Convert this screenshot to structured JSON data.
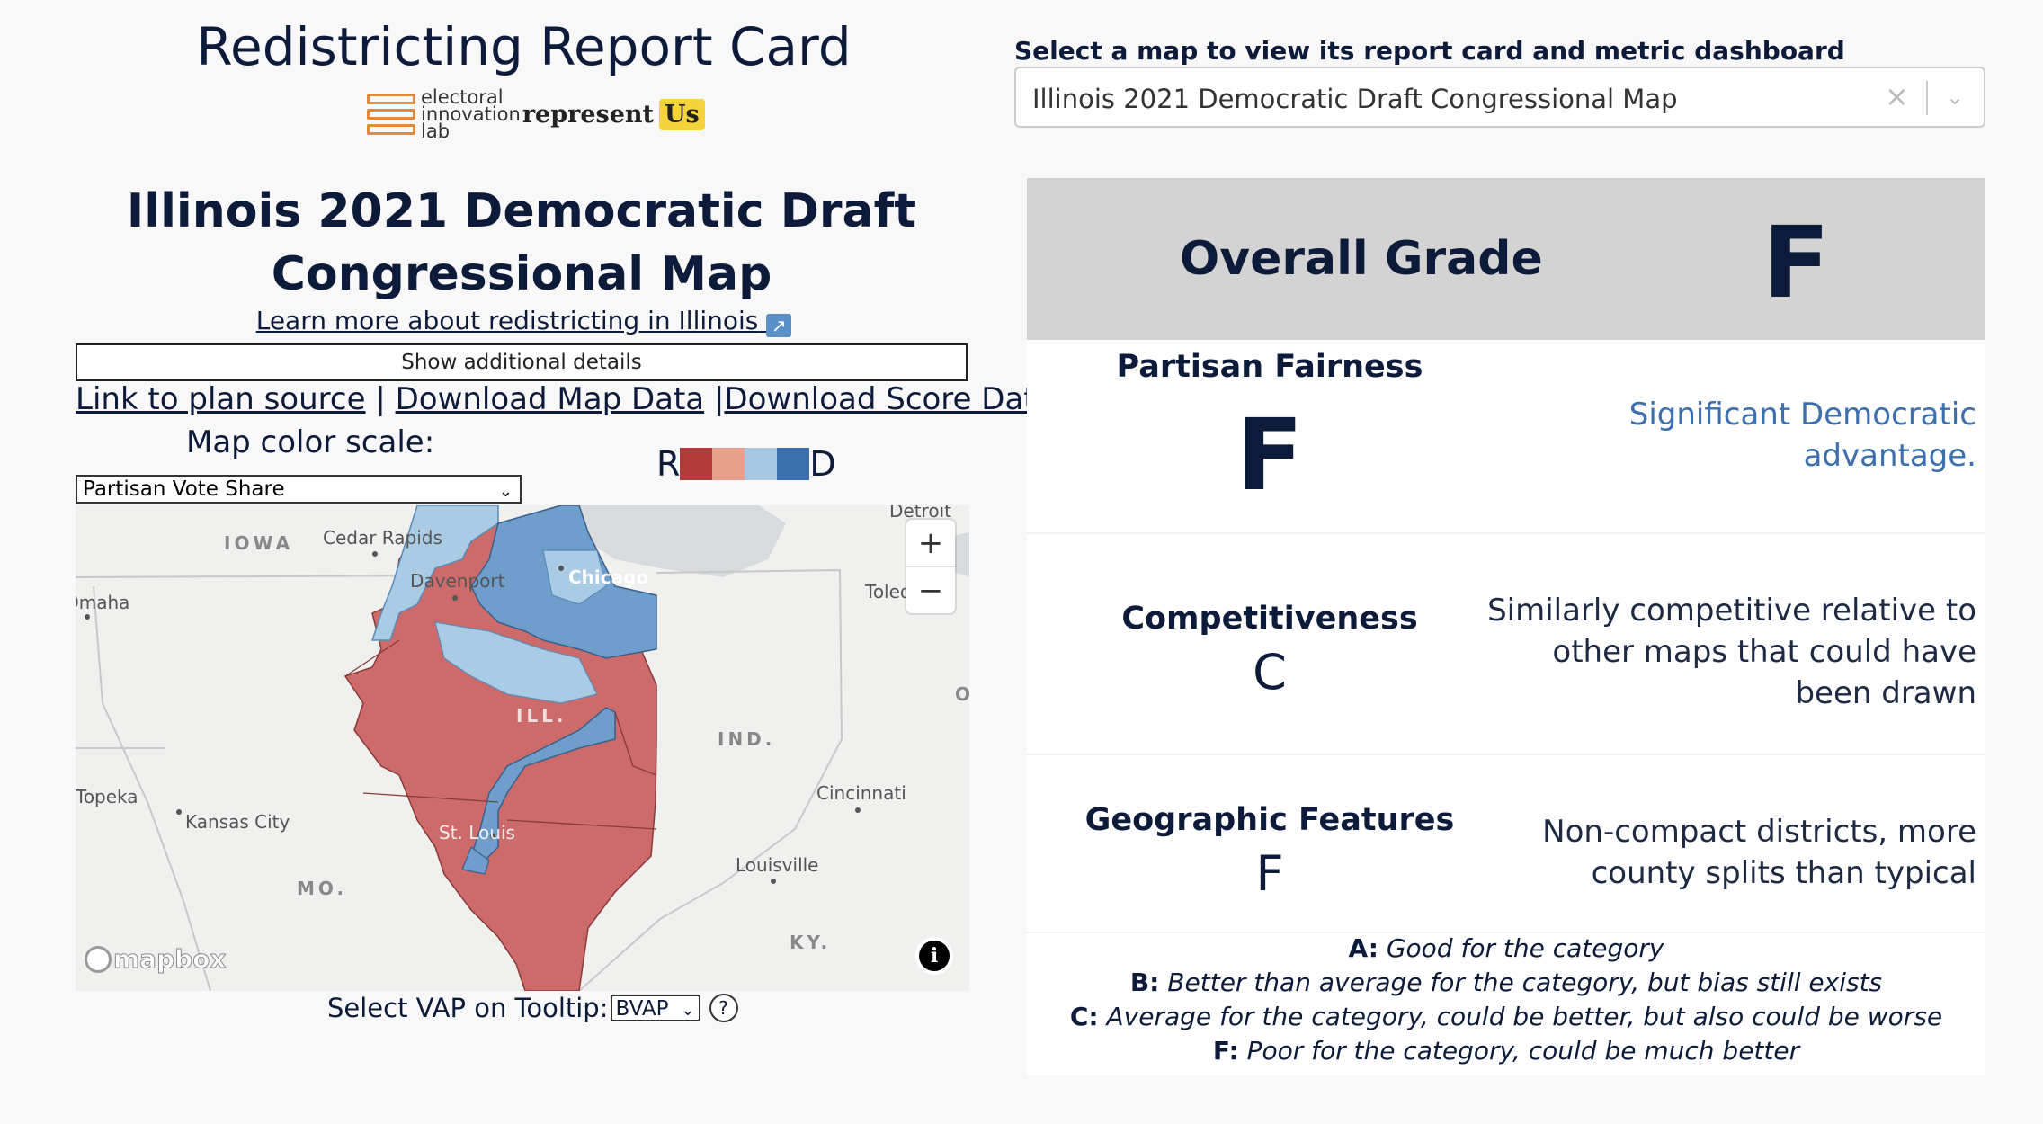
{
  "header": {
    "title": "Redistricting Report Card",
    "logo_eil": [
      "electoral",
      "innovation",
      "lab"
    ],
    "logo_ru_represent": "represent",
    "logo_ru_us": "Us"
  },
  "plan": {
    "title": "Illinois 2021 Democratic Draft Congressional Map",
    "learn_more": "Learn more about redistricting in Illinois",
    "details_button": "Show additional details",
    "link_source": "Link to plan source",
    "sep1": " | ",
    "link_map_data": "Download Map Data",
    "sep2": " |",
    "link_score_data": "Download Score Data"
  },
  "color_scale": {
    "label": "Map color scale:",
    "selected": "Partisan Vote Share",
    "legend_left": "R",
    "legend_right": "D",
    "colors": [
      "#b23a3a",
      "#e8a08c",
      "#a7c8e0",
      "#3b6fad"
    ]
  },
  "map": {
    "places": {
      "iowa": "IOWA",
      "cedar_rapids": "Cedar Rapids",
      "davenport": "Davenport",
      "chicago": "Chicago",
      "detroit": "Detroit",
      "toledo": "Toledo",
      "omaha": "Omaha",
      "ill": "ILL.",
      "ind": "IND.",
      "oh": "O",
      "topeka": "Topeka",
      "kansas_city": "Kansas City",
      "st_louis": "St. Louis",
      "cincinnati": "Cincinnati",
      "louisville": "Louisville",
      "mo": "MO.",
      "ky": "KY."
    },
    "zoom_in": "+",
    "zoom_out": "−",
    "attribution": "mapbox",
    "info": "i",
    "district_colors": {
      "strong_r": "#cd6b6b",
      "lean_d": "#a9cbe3",
      "strong_d": "#6f9dcc"
    }
  },
  "vap": {
    "label": "Select VAP on Tooltip:",
    "selected": "BVAP",
    "help": "?"
  },
  "selector": {
    "label": "Select a map to view its report card and metric dashboard",
    "value": "Illinois 2021 Democratic Draft Congressional Map",
    "clear": "×",
    "chevron": "⌄"
  },
  "report_card": {
    "overall_label": "Overall Grade",
    "overall_grade": "F",
    "categories": [
      {
        "name": "Partisan Fairness",
        "grade": "F",
        "desc": "Significant Democratic advantage.",
        "desc_color": "#3b6fad"
      },
      {
        "name": "Competitiveness",
        "grade": "C",
        "desc": "Similarly competitive relative to other maps that could have been drawn"
      },
      {
        "name": "Geographic Features",
        "grade": "F",
        "desc": "Non-compact districts, more county splits than typical"
      }
    ],
    "legend": [
      {
        "grade": "A:",
        "text": "Good for the category"
      },
      {
        "grade": "B:",
        "text": "Better than average for the category, but bias still exists"
      },
      {
        "grade": "C:",
        "text": "Average for the category, could be better, but also could be worse"
      },
      {
        "grade": "F:",
        "text": "Poor for the category, could be much better"
      }
    ]
  }
}
